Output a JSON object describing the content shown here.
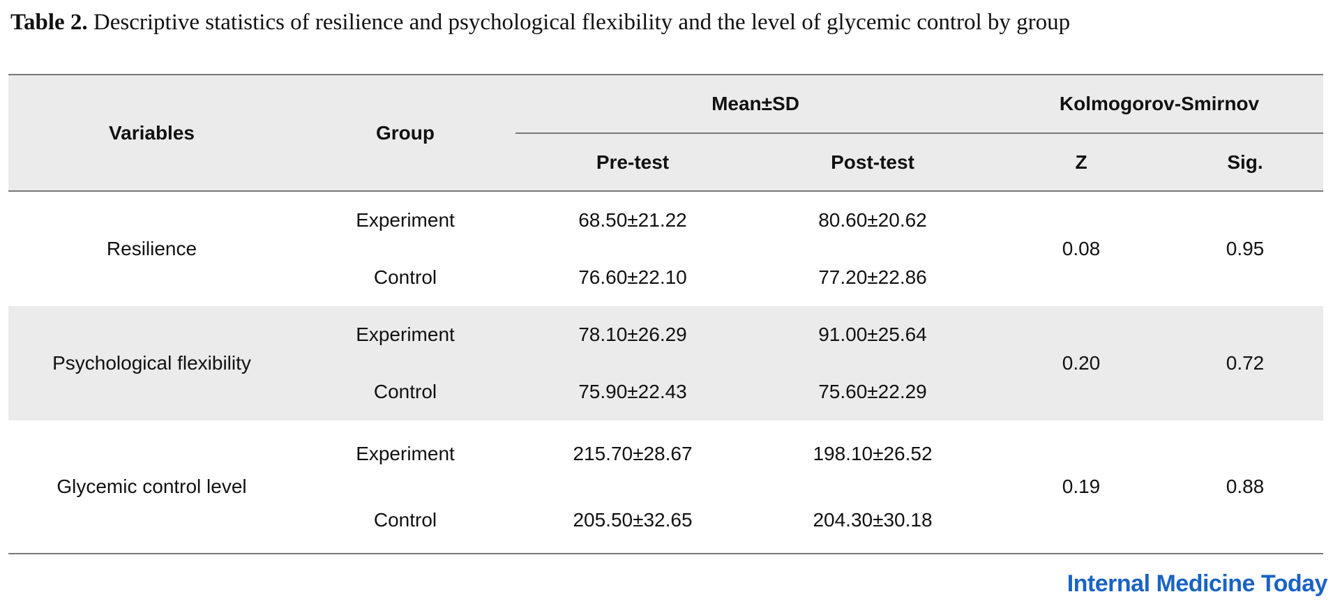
{
  "caption": {
    "label": "Table 2.",
    "text": "Descriptive statistics of resilience and psychological flexibility and the level of glycemic control by group"
  },
  "table": {
    "header": {
      "variables": "Variables",
      "group": "Group",
      "mean_sd": "Mean±SD",
      "ks": "Kolmogorov-Smirnov",
      "pre": "Pre-test",
      "post": "Post-test",
      "z": "Z",
      "sig": "Sig."
    },
    "rows": [
      {
        "variable": "Resilience",
        "groups": [
          {
            "group": "Experiment",
            "pre": "68.50±21.22",
            "post": "80.60±20.62"
          },
          {
            "group": "Control",
            "pre": "76.60±22.10",
            "post": "77.20±22.86"
          }
        ],
        "z": "0.08",
        "sig": "0.95"
      },
      {
        "variable": "Psychological flexibility",
        "groups": [
          {
            "group": "Experiment",
            "pre": "78.10±26.29",
            "post": "91.00±25.64"
          },
          {
            "group": "Control",
            "pre": "75.90±22.43",
            "post": "75.60±22.29"
          }
        ],
        "z": "0.20",
        "sig": "0.72"
      },
      {
        "variable": "Glycemic control level",
        "groups": [
          {
            "group": "Experiment",
            "pre": "215.70±28.67",
            "post": "198.10±26.52"
          },
          {
            "group": "Control",
            "pre": "205.50±32.65",
            "post": "204.30±30.18"
          }
        ],
        "z": "0.19",
        "sig": "0.88"
      }
    ]
  },
  "logo": "Internal Medicine Today"
}
